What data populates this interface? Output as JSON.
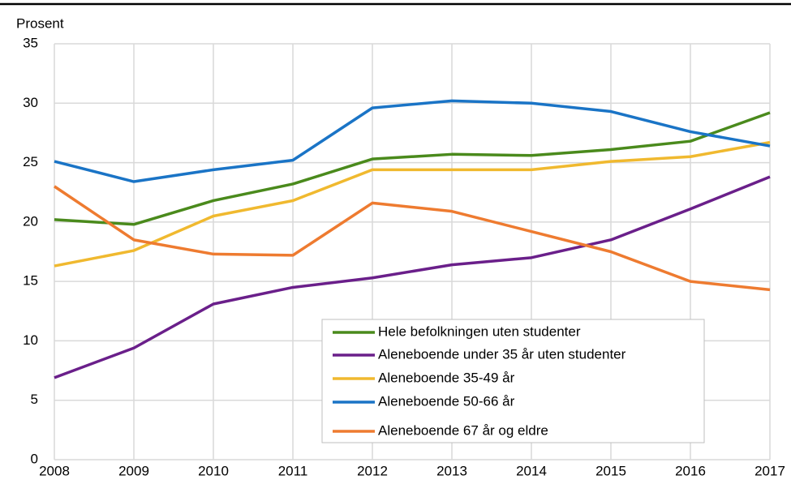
{
  "chart_data": {
    "type": "line",
    "y_label": "Prosent",
    "x": [
      2008,
      2009,
      2010,
      2011,
      2012,
      2013,
      2014,
      2015,
      2016,
      2017
    ],
    "xlim": [
      2008,
      2017
    ],
    "xticks": [
      2008,
      2009,
      2010,
      2011,
      2012,
      2013,
      2014,
      2015,
      2016,
      2017
    ],
    "ylim": [
      0,
      35
    ],
    "yticks": [
      0,
      5,
      10,
      15,
      20,
      25,
      30,
      35
    ],
    "grid": true,
    "legend": "lower right",
    "series": [
      {
        "name": "Hele befolkningen uten studenter",
        "color": "#4a8a1c",
        "values": [
          20.2,
          19.8,
          21.8,
          23.2,
          25.3,
          25.7,
          25.6,
          26.1,
          26.8,
          29.2
        ]
      },
      {
        "name": "Aleneboende under 35 år uten studenter",
        "color": "#6a1f8a",
        "values": [
          6.9,
          9.4,
          13.1,
          14.5,
          15.3,
          16.4,
          17.0,
          18.5,
          21.1,
          23.8
        ]
      },
      {
        "name": "Aleneboende 35-49 år",
        "color": "#f0b92f",
        "values": [
          16.3,
          17.6,
          20.5,
          21.8,
          24.4,
          24.4,
          24.4,
          25.1,
          25.5,
          26.7
        ]
      },
      {
        "name": "Aleneboende 50-66 år",
        "color": "#1a74c6",
        "values": [
          25.1,
          23.4,
          24.4,
          25.2,
          29.6,
          30.2,
          30.0,
          29.3,
          27.6,
          26.4
        ]
      },
      {
        "name": "Aleneboende 67 år og eldre",
        "color": "#ee7b30",
        "values": [
          23.0,
          18.5,
          17.3,
          17.2,
          21.6,
          20.9,
          19.2,
          17.5,
          15.0,
          14.3
        ]
      }
    ]
  }
}
